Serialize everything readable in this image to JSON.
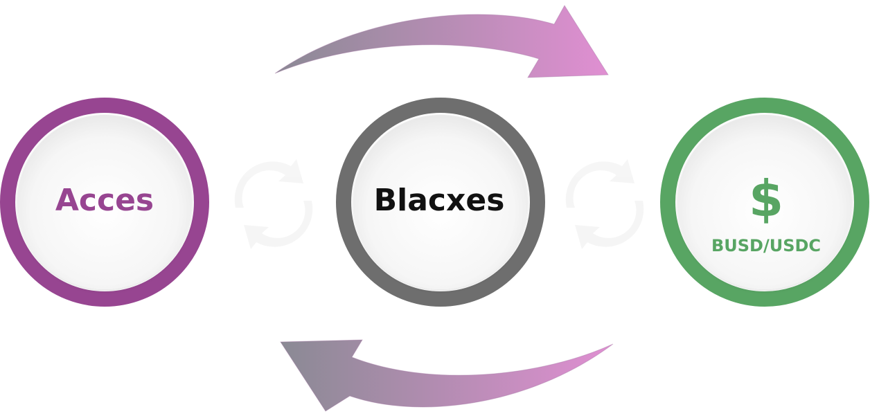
{
  "diagram": {
    "nodes": [
      {
        "id": "acces",
        "label": "Acces",
        "color": "#974591"
      },
      {
        "id": "blacxes",
        "label": "Blacxes",
        "color": "#6e6e6e"
      },
      {
        "id": "busd",
        "symbol": "$",
        "label": "BUSD/USDC",
        "color": "#58a563"
      }
    ],
    "arrows": {
      "gradient_start": "#8a8a94",
      "gradient_end": "#e08fd2"
    }
  }
}
